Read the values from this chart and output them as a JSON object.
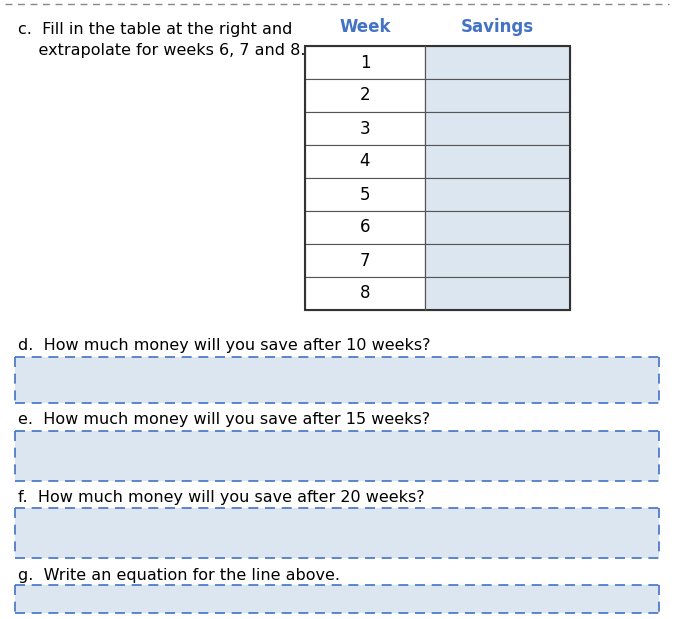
{
  "title_c": "c.  Fill in the table at the right and\n    extrapolate for weeks 6, 7 and 8.",
  "col_week_label": "Week",
  "col_savings_label": "Savings",
  "weeks": [
    "1",
    "2",
    "3",
    "4",
    "5",
    "6",
    "7",
    "8"
  ],
  "question_d": "d.  How much money will you save after 10 weeks?",
  "question_e": "e.  How much money will you save after 15 weeks?",
  "question_f": "f.  How much money will you save after 20 weeks?",
  "question_g": "g.  Write an equation for the line above.",
  "bg_color": "#ffffff",
  "table_header_color": "#4472c4",
  "savings_col_color": "#dce6f1",
  "week_col_color": "#ffffff",
  "answer_box_color": "#dce6f1",
  "dash_color": "#4472c4",
  "top_dash_color": "#888888",
  "text_color": "#000000",
  "font_size_main": 11.5,
  "font_size_table": 12,
  "font_size_header": 12
}
